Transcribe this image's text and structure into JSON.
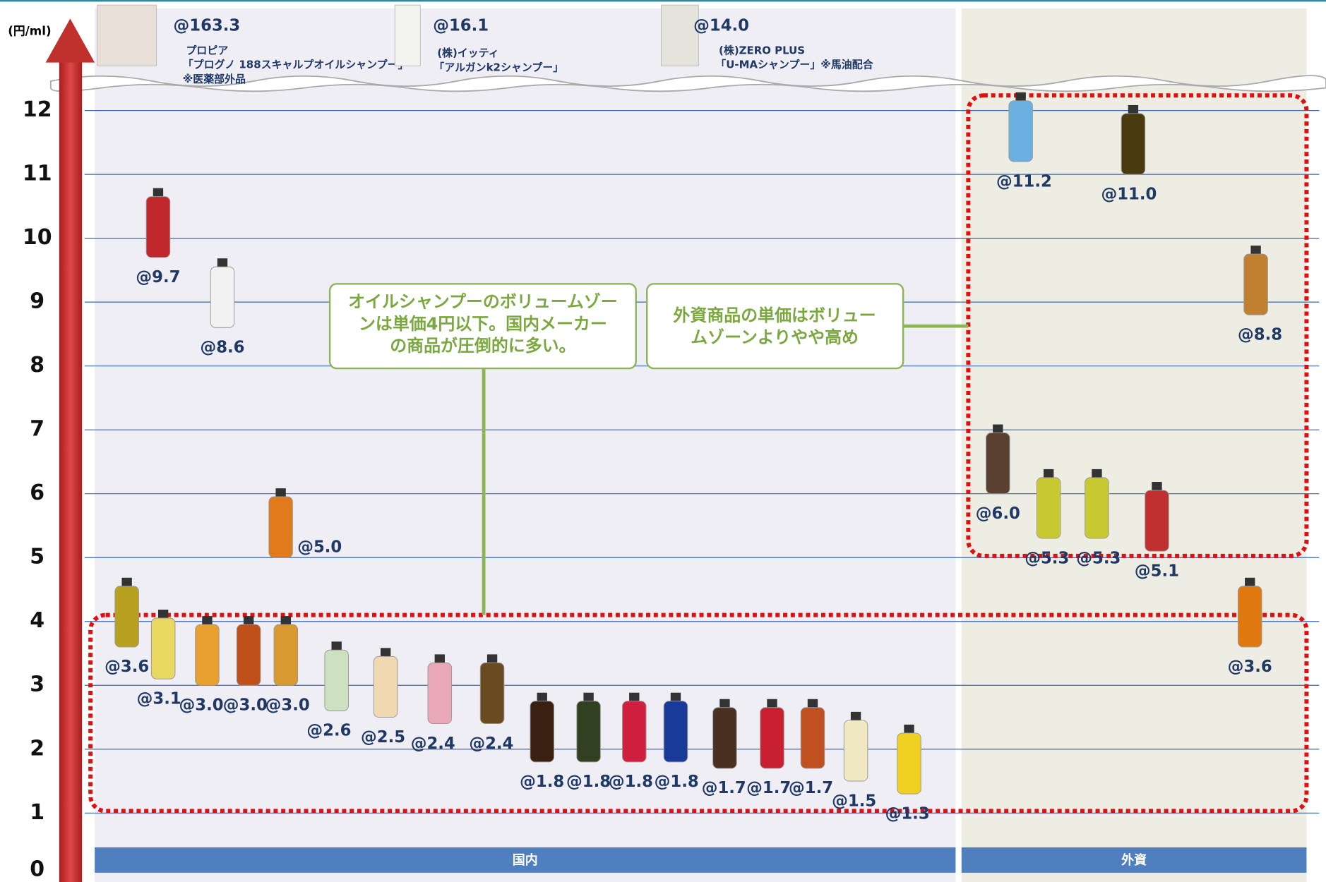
{
  "chart_data": {
    "type": "pictograph",
    "y_axis_label": "(円/ml)",
    "ylim": [
      0,
      12
    ],
    "yticks": [
      0,
      1,
      2,
      3,
      4,
      5,
      6,
      7,
      8,
      9,
      10,
      11,
      12
    ],
    "grid": true,
    "series": [
      {
        "name": "国内",
        "color": "#4f81bd",
        "colors": [
          "#c0282e",
          "#f2f2f2",
          "#e07a1a",
          "#b8a020",
          "#e8d860",
          "#e8a030",
          "#c0501a",
          "#d89a30",
          "#cde0c0",
          "#f0d8b0",
          "#e8a8b8",
          "#6a4a20",
          "#3a2010",
          "#304020",
          "#d02040",
          "#1a3a9a",
          "#4a3020",
          "#c82030",
          "#c05020",
          "#f0e8c0",
          "#f0d020"
        ],
        "values": [
          9.7,
          8.6,
          5.0,
          3.6,
          3.1,
          3.0,
          3.0,
          3.0,
          2.6,
          2.5,
          2.4,
          2.4,
          1.8,
          1.8,
          1.8,
          1.8,
          1.7,
          1.7,
          1.7,
          1.5,
          1.3
        ],
        "value_labels": [
          "@9.7",
          "@8.6",
          "@5.0",
          "@3.6",
          "@3.1",
          "@3.0",
          "@3.0",
          "@3.0",
          "@2.6",
          "@2.5",
          "@2.4",
          "@2.4",
          "@1.8",
          "@1.8",
          "@1.8",
          "@1.8",
          "@1.7",
          "@1.7",
          "@1.7",
          "@1.5",
          "@1.3"
        ]
      },
      {
        "name": "外資",
        "color": "#4f81bd",
        "colors": [
          "#6ab0e0",
          "#4a3a10",
          "#c08030",
          "#5a4030",
          "#c8c830",
          "#c8c830",
          "#c03030",
          "#e07a10"
        ],
        "values": [
          11.2,
          11.0,
          8.8,
          6.0,
          5.3,
          5.3,
          5.1,
          3.6
        ],
        "value_labels": [
          "@11.2",
          "@11.0",
          "@8.8",
          "@6.0",
          "@5.3",
          "@5.3",
          "@5.1",
          "@3.6"
        ]
      }
    ],
    "above_break": [
      {
        "value": 163.3,
        "value_label": "@163.3",
        "color": "#e8e0d8",
        "lines": [
          "プロピア",
          "「プログノ 188スキャルプオイルシャンプー」",
          "※医薬部外品"
        ]
      },
      {
        "value": 16.1,
        "value_label": "@16.1",
        "color": "#f4f4f0",
        "lines": [
          "(株)イッティ",
          "「アルガンk2シャンプー」"
        ]
      },
      {
        "value": 14.0,
        "value_label": "@14.0",
        "color": "#e4e4dc",
        "lines": [
          "(株)ZERO PLUS",
          "「U-MAシャンプー」※馬油配合"
        ]
      }
    ],
    "annotations": [
      [
        "オイルシャンプーのボリュームゾー",
        "ンは単価4円以下。国内メーカー",
        "の商品が圧倒的に多い。"
      ],
      [
        "外資商品の単価はボリュー",
        "ムゾーンよりやや高め"
      ]
    ]
  }
}
